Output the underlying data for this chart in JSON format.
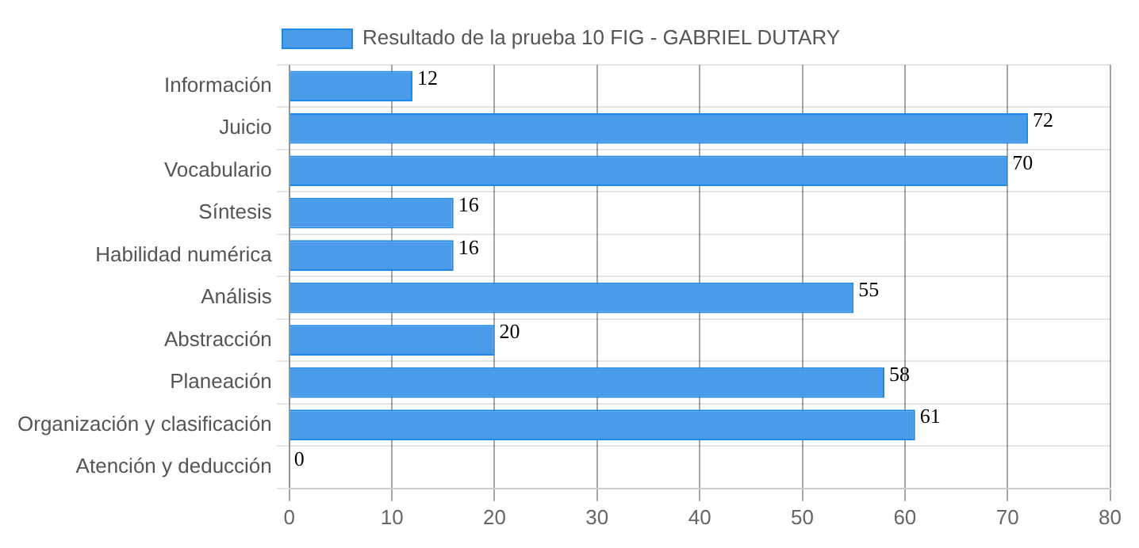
{
  "chart_data": {
    "type": "bar",
    "orientation": "horizontal",
    "categories": [
      "Información",
      "Juicio",
      "Vocabulario",
      "Síntesis",
      "Habilidad numérica",
      "Análisis",
      "Abstracción",
      "Planeación",
      "Organización y clasificación",
      "Atención y deducción"
    ],
    "series": [
      {
        "name": "Resultado de la prueba 10 FIG - GABRIEL DUTARY",
        "color": "#4a9be9",
        "values": [
          12,
          72,
          70,
          16,
          16,
          55,
          20,
          58,
          61,
          0
        ]
      }
    ],
    "xlim": [
      0,
      80
    ],
    "xticks": [
      0,
      10,
      20,
      30,
      40,
      50,
      60,
      70,
      80
    ],
    "grid": true,
    "legend": "top",
    "data_labels": true
  }
}
